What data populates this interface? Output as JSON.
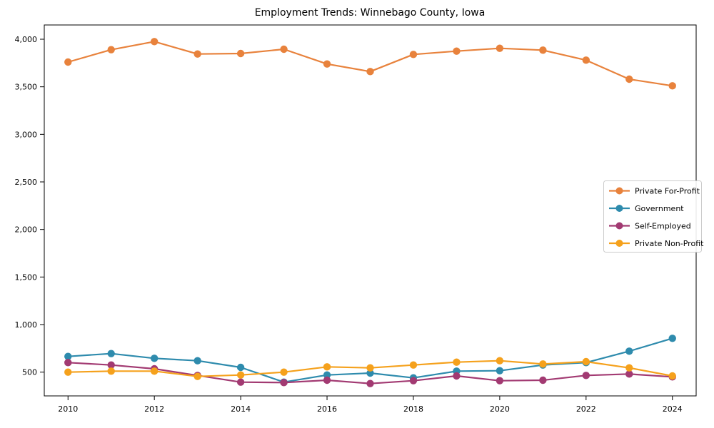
{
  "chart_data": {
    "type": "line",
    "title": "Employment Trends: Winnebago County, Iowa",
    "xlabel": "",
    "ylabel": "",
    "x": [
      2010,
      2011,
      2012,
      2013,
      2014,
      2015,
      2016,
      2017,
      2018,
      2019,
      2020,
      2021,
      2022,
      2023,
      2024
    ],
    "x_ticks": [
      2010,
      2012,
      2014,
      2016,
      2018,
      2020,
      2022,
      2024
    ],
    "x_tick_labels": [
      "2010",
      "2012",
      "2014",
      "2016",
      "2018",
      "2020",
      "2022",
      "2024"
    ],
    "y_ticks": [
      500,
      1000,
      1500,
      2000,
      2500,
      3000,
      3500,
      4000
    ],
    "y_tick_labels": [
      "500",
      "1,000",
      "1,500",
      "2,000",
      "2,500",
      "3,000",
      "3,500",
      "4,000"
    ],
    "xlim": [
      2009.45,
      2024.55
    ],
    "ylim": [
      250,
      4150
    ],
    "grid": false,
    "legend_position": "center-right-inside",
    "frame_color": "#000000",
    "series": [
      {
        "name": "Private For-Profit",
        "color": "#E8823C",
        "values": [
          3760,
          3890,
          3975,
          3845,
          3850,
          3895,
          3740,
          3660,
          3840,
          3875,
          3905,
          3885,
          3780,
          3580,
          3510
        ]
      },
      {
        "name": "Government",
        "color": "#2E8BAD",
        "values": [
          665,
          695,
          645,
          620,
          550,
          395,
          470,
          490,
          440,
          510,
          515,
          575,
          600,
          720,
          855
        ]
      },
      {
        "name": "Self-Employed",
        "color": "#A23A72",
        "values": [
          600,
          575,
          535,
          465,
          395,
          390,
          415,
          380,
          410,
          460,
          410,
          415,
          465,
          480,
          450
        ]
      },
      {
        "name": "Private Non-Profit",
        "color": "#F5A11C",
        "values": [
          500,
          510,
          510,
          455,
          470,
          500,
          555,
          545,
          575,
          605,
          620,
          585,
          610,
          545,
          460
        ]
      }
    ]
  }
}
